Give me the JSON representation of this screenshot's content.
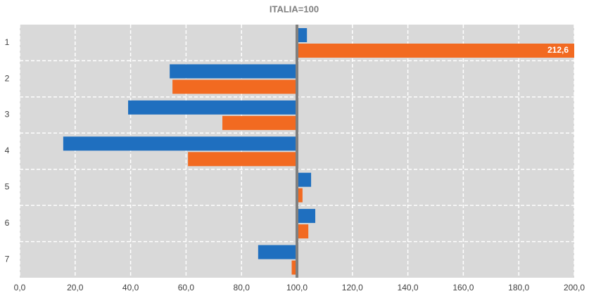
{
  "chart_data": {
    "type": "bar",
    "orientation": "horizontal",
    "title": "ITALIA=100",
    "categories": [
      "1",
      "2",
      "3",
      "4",
      "5",
      "6",
      "7"
    ],
    "series": [
      {
        "color": "#1f6fbf",
        "values": [
          103.6,
          54.1,
          39.1,
          15.7,
          105.1,
          106.6,
          86.0
        ]
      },
      {
        "color": "#f26a21",
        "values": [
          212.6,
          55.1,
          73.1,
          60.7,
          102.0,
          104.1,
          98.1
        ],
        "value_labels": [
          "212,6",
          null,
          null,
          null,
          null,
          null,
          null
        ]
      }
    ],
    "baseline": 100,
    "xlim": [
      0,
      200
    ],
    "xticks": [
      {
        "value": 0,
        "label": "0,0"
      },
      {
        "value": 20,
        "label": "20,0"
      },
      {
        "value": 40,
        "label": "40,0"
      },
      {
        "value": 60,
        "label": "60,0"
      },
      {
        "value": 80,
        "label": "80,0"
      },
      {
        "value": 100,
        "label": "100,0"
      },
      {
        "value": 120,
        "label": "120,0"
      },
      {
        "value": 140,
        "label": "140,0"
      },
      {
        "value": 160,
        "label": "160,0"
      },
      {
        "value": 180,
        "label": "180,0"
      },
      {
        "value": 200,
        "label": "200,0"
      }
    ],
    "grid": true
  }
}
